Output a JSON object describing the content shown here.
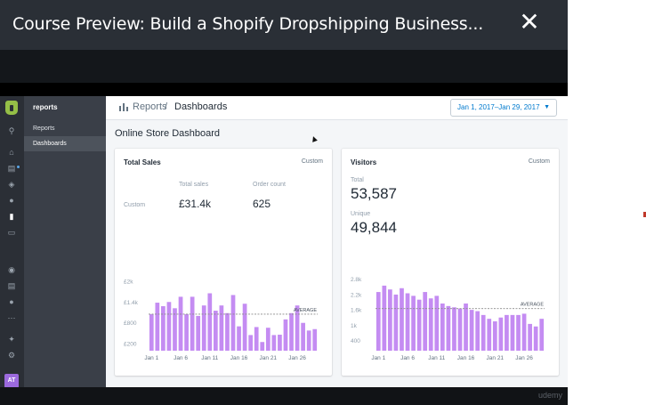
{
  "modal": {
    "title": "Course Preview: Build a Shopify Dropshipping Business...",
    "close_label": "✕"
  },
  "watermark": "udemy",
  "sidebar": {
    "avatar_initials": "AT",
    "icons": [
      "shopify-logo-icon",
      "search-icon",
      "home-icon",
      "orders-icon",
      "products-icon",
      "customers-icon",
      "reports-icon",
      "discounts-icon",
      "online-store-icon",
      "blog-icon",
      "apps-icon",
      "more-icon",
      "sales-channels-icon",
      "settings-icon"
    ]
  },
  "subnav": {
    "title": "reports",
    "items": [
      {
        "label": "Reports"
      },
      {
        "label": "Dashboards"
      }
    ]
  },
  "topbar": {
    "breadcrumb_parent": "Reports",
    "breadcrumb_separator": "/",
    "breadcrumb_current": "Dashboards",
    "date_range": "Jan 1, 2017–Jan 29, 2017",
    "date_caret": "▼"
  },
  "heading": "Online Store Dashboard",
  "sales_card": {
    "title": "Total Sales",
    "range": "Custom",
    "row_label": "Custom",
    "col1_label": "Total sales",
    "col1_value": "£31.4k",
    "col2_label": "Order count",
    "col2_value": "625"
  },
  "visitors_card": {
    "title": "Visitors",
    "range": "Custom",
    "total_label": "Total",
    "total_value": "53,587",
    "unique_label": "Unique",
    "unique_value": "49,844"
  },
  "colors": {
    "bar": "#c48cf2",
    "average_line": "#8b8b8b",
    "accent": "#007ace"
  },
  "chart_data": [
    {
      "type": "bar",
      "name": "Total Sales",
      "ylim": [
        0,
        2200
      ],
      "y_ticks": [
        200,
        800,
        1400,
        2000
      ],
      "y_tick_labels": [
        "£200",
        "£800",
        "£1.4k",
        "£2k"
      ],
      "x_tick_labels": [
        "Jan 1",
        "Jan 6",
        "Jan 11",
        "Jan 16",
        "Jan 21",
        "Jan 26"
      ],
      "x_tick_index": [
        0,
        5,
        10,
        15,
        20,
        25
      ],
      "average": 1050,
      "average_label": "AVERAGE",
      "values": [
        1050,
        1380,
        1280,
        1400,
        1220,
        1550,
        1050,
        1550,
        1000,
        1300,
        1650,
        1150,
        1300,
        1080,
        1600,
        700,
        1350,
        450,
        680,
        250,
        660,
        450,
        460,
        900,
        1080,
        1300,
        800,
        580,
        620
      ]
    },
    {
      "type": "bar",
      "name": "Visitors",
      "ylim": [
        0,
        3000
      ],
      "y_ticks": [
        400,
        1000,
        1600,
        2200,
        2800
      ],
      "y_tick_labels": [
        "400",
        "1k",
        "1.6k",
        "2.2k",
        "2.8k"
      ],
      "x_tick_labels": [
        "Jan 1",
        "Jan 6",
        "Jan 11",
        "Jan 16",
        "Jan 21",
        "Jan 26"
      ],
      "x_tick_index": [
        0,
        5,
        10,
        15,
        20,
        25
      ],
      "average": 1650,
      "average_label": "AVERAGE",
      "values": [
        2300,
        2550,
        2400,
        2200,
        2450,
        2250,
        2150,
        2000,
        2300,
        2050,
        2150,
        1850,
        1750,
        1700,
        1650,
        1850,
        1600,
        1550,
        1400,
        1250,
        1150,
        1300,
        1400,
        1400,
        1400,
        1450,
        1050,
        950,
        1250
      ]
    }
  ]
}
